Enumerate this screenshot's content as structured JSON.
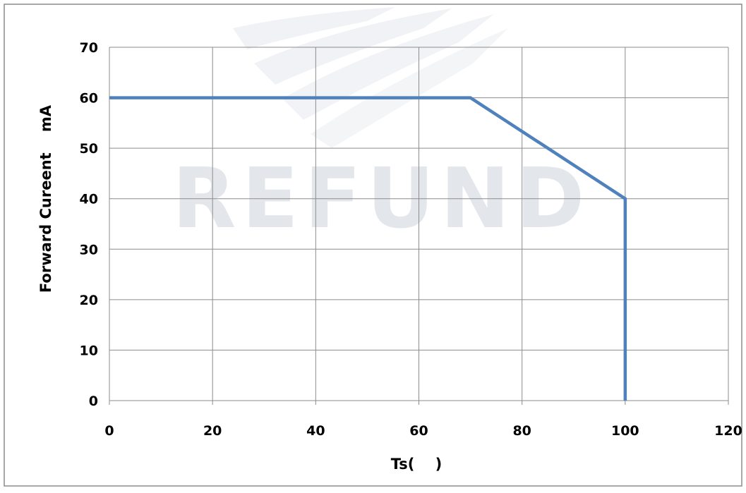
{
  "chart_data": {
    "type": "line",
    "title": "",
    "xlabel": "Ts(    )",
    "ylabel": "Forward Cureent    mA",
    "xlim": [
      0,
      120
    ],
    "ylim": [
      0,
      70
    ],
    "x_ticks": [
      0,
      20,
      40,
      60,
      80,
      100,
      120
    ],
    "y_ticks": [
      0,
      10,
      20,
      30,
      40,
      50,
      60,
      70
    ],
    "grid": true,
    "legend": "none",
    "series": [
      {
        "x": [
          0,
          70,
          100,
          100
        ],
        "y": [
          60,
          60,
          40,
          0
        ],
        "color": "#4f81bd"
      }
    ],
    "watermark": "REFUND"
  },
  "colors": {
    "grid": "#8c8c8c",
    "border": "#8c8c8c",
    "line": "#4f81bd",
    "watermark": "#e6e9ee"
  }
}
